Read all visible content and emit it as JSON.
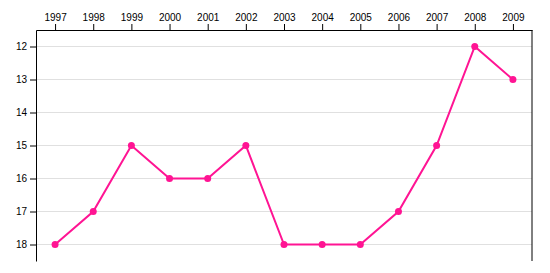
{
  "chart_data": {
    "type": "line",
    "x": [
      1997,
      1998,
      1999,
      2000,
      2001,
      2002,
      2003,
      2004,
      2005,
      2006,
      2007,
      2008,
      2009
    ],
    "values": [
      18,
      17,
      15,
      16,
      16,
      15,
      18,
      18,
      18,
      17,
      15,
      12,
      13
    ],
    "color": "#FF1493",
    "marker": "circle",
    "xlim": [
      1996.5,
      2009.5
    ],
    "xticks": [
      1997,
      1998,
      1999,
      2000,
      2001,
      2002,
      2003,
      2004,
      2005,
      2006,
      2007,
      2008,
      2009
    ],
    "ylim": [
      18.5,
      11.5
    ],
    "yticks": [
      12,
      13,
      14,
      15,
      16,
      17,
      18
    ],
    "grid": true
  }
}
